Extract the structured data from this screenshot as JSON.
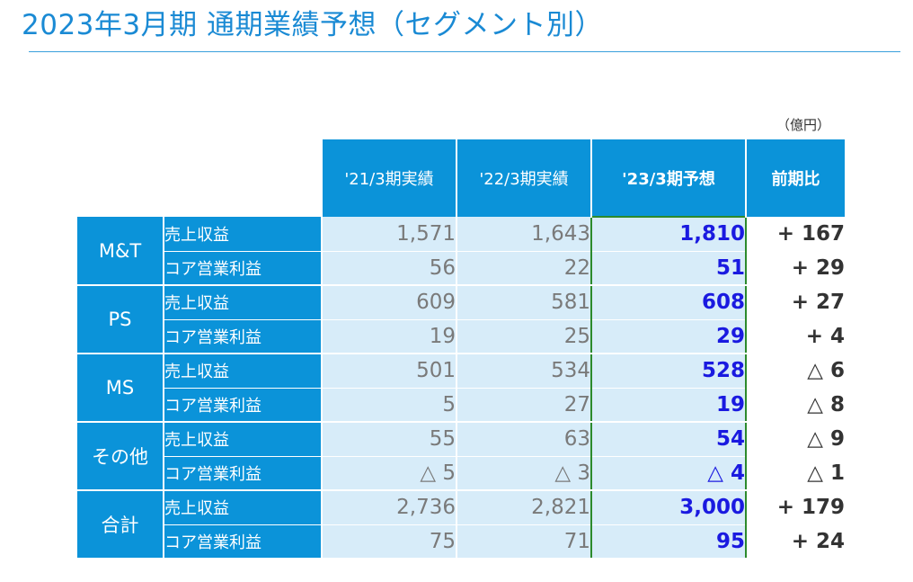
{
  "title": "2023年3月期 通期業績予想（セグメント別）",
  "unit": "（億円）",
  "columns": [
    "'21/3期実績",
    "'22/3期実績",
    "'23/3期予想",
    "前期比"
  ],
  "segments": [
    {
      "name": "M&T",
      "rows": [
        {
          "item": "売上収益",
          "fy21": "1,571",
          "fy22": "1,643",
          "fy23": "1,810",
          "yoy": "+ 167"
        },
        {
          "item": "コア営業利益",
          "fy21": "56",
          "fy22": "22",
          "fy23": "51",
          "yoy": "+ 29"
        }
      ]
    },
    {
      "name": "PS",
      "rows": [
        {
          "item": "売上収益",
          "fy21": "609",
          "fy22": "581",
          "fy23": "608",
          "yoy": "+ 27"
        },
        {
          "item": "コア営業利益",
          "fy21": "19",
          "fy22": "25",
          "fy23": "29",
          "yoy": "+ 4"
        }
      ]
    },
    {
      "name": "MS",
      "rows": [
        {
          "item": "売上収益",
          "fy21": "501",
          "fy22": "534",
          "fy23": "528",
          "yoy": "△ 6"
        },
        {
          "item": "コア営業利益",
          "fy21": "5",
          "fy22": "27",
          "fy23": "19",
          "yoy": "△ 8"
        }
      ]
    },
    {
      "name": "その他",
      "rows": [
        {
          "item": "売上収益",
          "fy21": "55",
          "fy22": "63",
          "fy23": "54",
          "yoy": "△ 9"
        },
        {
          "item": "コア営業利益",
          "fy21": "△ 5",
          "fy22": "△ 3",
          "fy23": "△ 4",
          "yoy": "△ 1"
        }
      ]
    },
    {
      "name": "合計",
      "rows": [
        {
          "item": "売上収益",
          "fy21": "2,736",
          "fy22": "2,821",
          "fy23": "3,000",
          "yoy": "+ 179"
        },
        {
          "item": "コア営業利益",
          "fy21": "75",
          "fy22": "71",
          "fy23": "95",
          "yoy": "+ 24"
        }
      ]
    }
  ]
}
